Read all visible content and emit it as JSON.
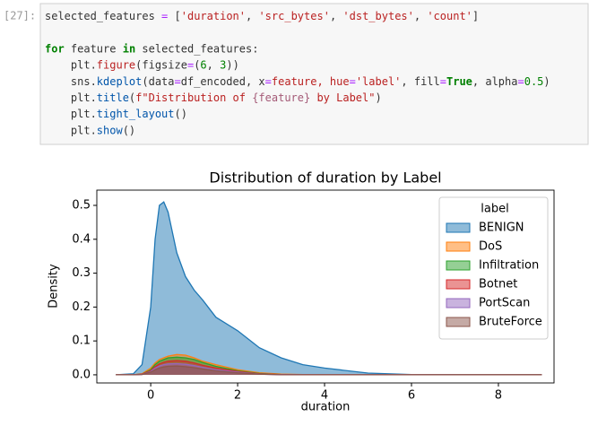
{
  "cell": {
    "prompt": "[27]:",
    "code": [
      [
        "selected_features",
        " = ",
        "[",
        "'duration'",
        ", ",
        "'src_bytes'",
        ", ",
        "'dst_bytes'",
        ", ",
        "'count'",
        "]"
      ],
      [],
      [
        "for",
        " feature ",
        "in",
        " selected_features:"
      ],
      [
        "    plt.",
        "figure",
        "(figsize",
        "=",
        "(",
        "6",
        ", ",
        "3",
        "))"
      ],
      [
        "    sns.",
        "kdeplot",
        "(data",
        "=",
        "df_encoded, x",
        "=",
        "feature, hue",
        "=",
        "'label'",
        ", fill",
        "=",
        "True",
        ", alpha",
        "=",
        "0.5",
        ")"
      ],
      [
        "    plt.",
        "title",
        "(",
        "f\"Distribution of ",
        "{feature}",
        " by Label\"",
        ")"
      ],
      [
        "    plt.",
        "tight_layout",
        "()"
      ],
      [
        "    plt.",
        "show",
        "()"
      ]
    ]
  },
  "chart_data": {
    "type": "area",
    "title": "Distribution of duration by Label",
    "x_label": "duration",
    "y_label": "Density",
    "legend_title": "label",
    "legend": "upper right",
    "x": [
      -0.8,
      -0.4,
      -0.2,
      0,
      0.1,
      0.2,
      0.3,
      0.4,
      0.6,
      0.8,
      1,
      1.2,
      1.5,
      2,
      2.5,
      3,
      3.5,
      4,
      5,
      6,
      7,
      8,
      9
    ],
    "series": [
      {
        "name": "BENIGN",
        "color": "#1f77b4",
        "values": [
          0,
          0.003,
          0.03,
          0.2,
          0.4,
          0.5,
          0.51,
          0.48,
          0.36,
          0.29,
          0.25,
          0.22,
          0.17,
          0.13,
          0.08,
          0.05,
          0.03,
          0.02,
          0.005,
          0.001,
          0,
          0,
          0
        ]
      },
      {
        "name": "DoS",
        "color": "#ff7f0e",
        "values": [
          0,
          0,
          0.003,
          0.02,
          0.035,
          0.045,
          0.05,
          0.055,
          0.06,
          0.058,
          0.05,
          0.04,
          0.03,
          0.015,
          0.006,
          0.002,
          0.001,
          0,
          0,
          0,
          0,
          0,
          0
        ]
      },
      {
        "name": "Infiltration",
        "color": "#2ca02c",
        "values": [
          0,
          0,
          0.002,
          0.015,
          0.03,
          0.04,
          0.045,
          0.05,
          0.052,
          0.05,
          0.045,
          0.036,
          0.025,
          0.012,
          0.004,
          0.001,
          0,
          0,
          0,
          0,
          0,
          0,
          0
        ]
      },
      {
        "name": "Botnet",
        "color": "#d62728",
        "values": [
          0,
          0,
          0.002,
          0.012,
          0.024,
          0.032,
          0.037,
          0.04,
          0.042,
          0.04,
          0.035,
          0.028,
          0.02,
          0.01,
          0.003,
          0.001,
          0,
          0,
          0,
          0,
          0,
          0,
          0
        ]
      },
      {
        "name": "PortScan",
        "color": "#9467bd",
        "values": [
          0,
          0,
          0.001,
          0.01,
          0.02,
          0.026,
          0.03,
          0.032,
          0.033,
          0.031,
          0.027,
          0.022,
          0.015,
          0.008,
          0.002,
          0,
          0,
          0,
          0,
          0,
          0,
          0,
          0
        ]
      },
      {
        "name": "BruteForce",
        "color": "#8c564b",
        "values": [
          0,
          0,
          0.001,
          0.008,
          0.015,
          0.02,
          0.023,
          0.025,
          0.026,
          0.024,
          0.021,
          0.017,
          0.012,
          0.006,
          0.002,
          0,
          0,
          0,
          0,
          0,
          0,
          0,
          0
        ]
      }
    ],
    "xlim": [
      -1.24,
      9.28
    ],
    "xticks": [
      0,
      2,
      4,
      6,
      8
    ],
    "ylim": [
      -0.024,
      0.545
    ],
    "yticks": [
      {
        "value": 0,
        "label": "0.0"
      },
      0.1,
      0.2,
      0.3,
      0.4,
      0.5
    ]
  }
}
